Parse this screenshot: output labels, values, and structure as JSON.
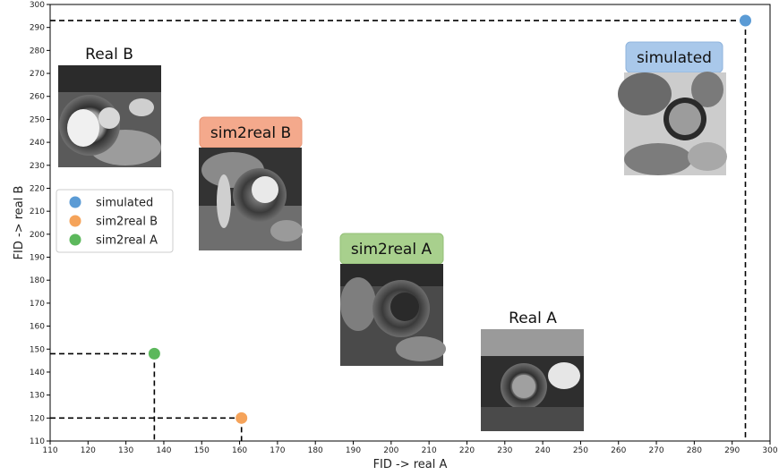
{
  "chart_data": {
    "type": "scatter",
    "title": "",
    "xlabel": "FID -> real A",
    "ylabel": "FID -> real B",
    "xlim": [
      110,
      300
    ],
    "ylim": [
      110,
      300
    ],
    "xticks": [
      "110",
      "120",
      "130",
      "140",
      "150",
      "160",
      "170",
      "180",
      "190",
      "200",
      "210",
      "220",
      "230",
      "240",
      "250",
      "260",
      "270",
      "280",
      "290",
      "300"
    ],
    "yticks": [
      "110",
      "120",
      "130",
      "140",
      "150",
      "160",
      "170",
      "180",
      "190",
      "200",
      "210",
      "220",
      "230",
      "240",
      "250",
      "260",
      "270",
      "280",
      "290",
      "300"
    ],
    "grid": false,
    "legend_position": "center-left",
    "series": [
      {
        "name": "simulated",
        "x": 293.5,
        "y": 293.0,
        "color": "#5b9bd5"
      },
      {
        "name": "sim2real B",
        "x": 160.5,
        "y": 120.0,
        "color": "#f5a35a"
      },
      {
        "name": "sim2real A",
        "x": 137.5,
        "y": 148.0,
        "color": "#5cb85c"
      }
    ],
    "annotations": [
      {
        "text": "Real B",
        "style": "plain"
      },
      {
        "text": "sim2real B",
        "style": "box",
        "box_color": "#f4a98c"
      },
      {
        "text": "sim2real A",
        "style": "box",
        "box_color": "#a8d08d"
      },
      {
        "text": "Real A",
        "style": "plain"
      },
      {
        "text": "simulated",
        "style": "box",
        "box_color": "#a9c8ea"
      }
    ]
  }
}
